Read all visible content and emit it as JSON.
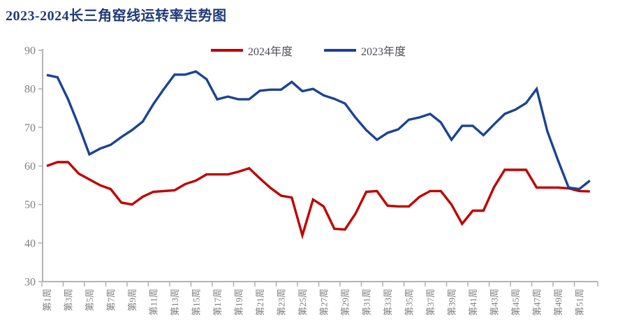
{
  "chart_data": {
    "type": "line",
    "title": "2023-2024长三角窑线运转率走势图",
    "x_unit": "week",
    "xlim": [
      1,
      52
    ],
    "ylim": [
      30,
      90
    ],
    "yticks": [
      30,
      40,
      50,
      60,
      70,
      80,
      90
    ],
    "x_tick_labels": [
      "第1周",
      "第3周",
      "第5周",
      "第7周",
      "第9周",
      "第11周",
      "第13周",
      "第15周",
      "第17周",
      "第19周",
      "第21周",
      "第23周",
      "第25周",
      "第27周",
      "第29周",
      "第31周",
      "第33周",
      "第35周",
      "第37周",
      "第39周",
      "第41周",
      "第43周",
      "第45周",
      "第47周",
      "第49周",
      "第51周"
    ],
    "grid": false,
    "legend_position": "top-center",
    "series": [
      {
        "name": "2024年度",
        "color": "#C00000",
        "values": [
          60,
          61,
          61,
          58,
          56.5,
          55,
          54,
          50.5,
          50,
          52,
          53.3,
          53.5,
          53.7,
          55.3,
          56.2,
          57.8,
          57.8,
          57.8,
          58.5,
          59.4,
          56.8,
          54.3,
          52.3,
          51.8,
          42,
          51.3,
          49.5,
          43.7,
          43.5,
          47.7,
          53.3,
          53.5,
          49.7,
          49.5,
          49.5,
          52,
          53.5,
          53.5,
          50,
          45,
          48.4,
          48.4,
          54.5,
          59,
          59,
          59,
          54.4,
          54.4,
          54.4,
          54.2,
          53.5,
          53.4
        ]
      },
      {
        "name": "2023年度",
        "color": "#1B4394",
        "values": [
          83.6,
          83,
          77.3,
          70.4,
          63,
          64.5,
          65.5,
          67.5,
          69.3,
          71.5,
          76,
          80,
          83.7,
          83.7,
          84.5,
          82.5,
          77.3,
          78,
          77.3,
          77.3,
          79.5,
          79.8,
          79.8,
          81.8,
          79.4,
          80,
          78.3,
          77.4,
          76.2,
          72.5,
          69.3,
          66.8,
          68.6,
          69.5,
          72,
          72.6,
          73.5,
          71.3,
          66.8,
          70.4,
          70.4,
          68,
          70.8,
          73.5,
          74.6,
          76.3,
          80,
          69,
          61.5,
          54.4,
          54,
          56.2
        ]
      }
    ]
  },
  "colors": {
    "title_text": "#1F3C78",
    "legend_text": "#4D4D55",
    "axis_text": "#7F7F7F",
    "axis_line": "#B3B3B3"
  }
}
